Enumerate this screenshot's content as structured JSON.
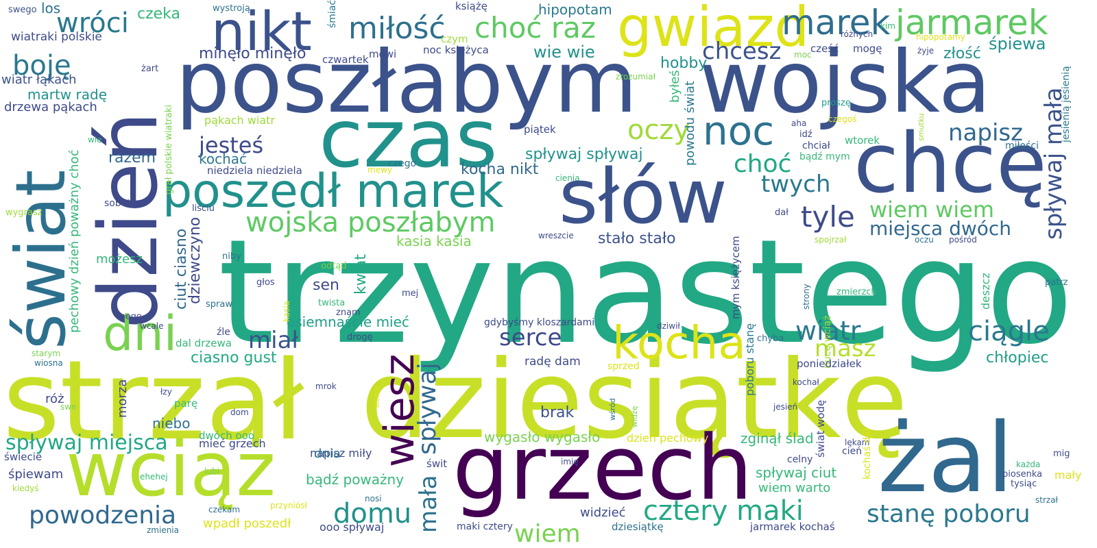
{
  "words": [
    {
      "text": "trzynastego",
      "color": "#22a884"
    },
    {
      "text": "strzał",
      "color": "#c8df27"
    },
    {
      "text": "dziesiątkę",
      "color": "#c8df27"
    },
    {
      "text": "poszłabym",
      "color": "#3b528b"
    },
    {
      "text": "wojska",
      "color": "#3b528b"
    },
    {
      "text": "dzień",
      "color": "#3e4a89"
    },
    {
      "text": "świat",
      "color": "#2d708e"
    },
    {
      "text": "czas",
      "color": "#21918c"
    },
    {
      "text": "chcę",
      "color": "#3b528b"
    },
    {
      "text": "grzech",
      "color": "#440154"
    },
    {
      "text": "żal",
      "color": "#31688e"
    },
    {
      "text": "wciąż",
      "color": "#b5de2b"
    },
    {
      "text": "słów",
      "color": "#3b528b"
    },
    {
      "text": "gwiazd",
      "color": "#dde318"
    },
    {
      "text": "nikt",
      "color": "#3b528b"
    },
    {
      "text": "poszedł marek",
      "color": "#21918c"
    },
    {
      "text": "kocha",
      "color": "#dde318"
    },
    {
      "text": "wiesz",
      "color": "#440154"
    },
    {
      "text": "dni",
      "color": "#7ad151"
    },
    {
      "text": "noc",
      "color": "#2c728e"
    },
    {
      "text": "marek",
      "color": "#2e6e8e"
    },
    {
      "text": "jarmarek",
      "color": "#5ec962"
    },
    {
      "text": "miłość",
      "color": "#2d708e"
    },
    {
      "text": "choć raz",
      "color": "#5ec962"
    },
    {
      "text": "wróci",
      "color": "#2a788e"
    },
    {
      "text": "boję",
      "color": "#2a788e"
    },
    {
      "text": "wojska poszłabym",
      "color": "#5ec962"
    },
    {
      "text": "oczy",
      "color": "#a0da39"
    },
    {
      "text": "chcesz",
      "color": "#3b528b"
    },
    {
      "text": "napisz",
      "color": "#31688e"
    },
    {
      "text": "spływaj mała",
      "color": "#3b528b"
    },
    {
      "text": "choć",
      "color": "#22a884"
    },
    {
      "text": "twych",
      "color": "#2a788e"
    },
    {
      "text": "tyle",
      "color": "#3e4a89"
    },
    {
      "text": "wiem wiem",
      "color": "#5ec962"
    },
    {
      "text": "miejsca dwóch",
      "color": "#31688e"
    },
    {
      "text": "jesteś",
      "color": "#3e4a89"
    },
    {
      "text": "powodzenia",
      "color": "#31688e"
    },
    {
      "text": "domu",
      "color": "#21918c"
    },
    {
      "text": "wiem",
      "color": "#7ad151"
    },
    {
      "text": "cztery maki",
      "color": "#22a884"
    },
    {
      "text": "stanę poboru",
      "color": "#2a788e"
    },
    {
      "text": "ciągle",
      "color": "#2a788e"
    },
    {
      "text": "wiatr",
      "color": "#2a788e"
    },
    {
      "text": "masz",
      "color": "#b5de2b"
    },
    {
      "text": "serce",
      "color": "#3e4a89"
    },
    {
      "text": "miał",
      "color": "#3b528b"
    },
    {
      "text": "spływaj",
      "color": "#31688e"
    },
    {
      "text": "mała",
      "color": "#2d708e"
    },
    {
      "text": "spływaj miejsca",
      "color": "#22a884"
    },
    {
      "text": "chłopiec",
      "color": "#1f9e89"
    },
    {
      "text": "hipopotam",
      "color": "#29798e"
    },
    {
      "text": "wie wie",
      "color": "#21918c"
    },
    {
      "text": "hobby",
      "color": "#21918c"
    },
    {
      "text": "śpiewa",
      "color": "#21918c"
    },
    {
      "text": "złość",
      "color": "#21918c"
    },
    {
      "text": "minęło minęło",
      "color": "#3e4a89"
    },
    {
      "text": "spływaj spływaj",
      "color": "#21918c"
    },
    {
      "text": "kocha nikt",
      "color": "#31688e"
    },
    {
      "text": "razem",
      "color": "#31688e"
    },
    {
      "text": "kochać",
      "color": "#2a788e"
    },
    {
      "text": "stało stało",
      "color": "#3b528b"
    },
    {
      "text": "kasia kasia",
      "color": "#7ad151"
    },
    {
      "text": "ciut ciasno",
      "color": "#31688e"
    },
    {
      "text": "dziewczyno",
      "color": "#3e4a89"
    },
    {
      "text": "kwiat",
      "color": "#22a884"
    },
    {
      "text": "sen",
      "color": "#3e4a89"
    },
    {
      "text": "osiemnaście mieć",
      "color": "#1f9e89"
    },
    {
      "text": "ciasno gust",
      "color": "#22a884"
    },
    {
      "text": "martw radę",
      "color": "#21918c"
    },
    {
      "text": "drzewa pąkach",
      "color": "#3e4a89"
    },
    {
      "text": "wiatr łąkach",
      "color": "#3b528b"
    },
    {
      "text": "wiatraki polskie",
      "color": "#3e4a89"
    },
    {
      "text": "czeka",
      "color": "#35b779"
    },
    {
      "text": "los",
      "color": "#2d708e"
    },
    {
      "text": "swego",
      "color": "#3b528b"
    },
    {
      "text": "wystroją",
      "color": "#2d708e"
    },
    {
      "text": "śmiać",
      "color": "#2a788e"
    },
    {
      "text": "książę",
      "color": "#3e4a89"
    },
    {
      "text": "czym",
      "color": "#a0da39"
    },
    {
      "text": "mówi",
      "color": "#3e4a89"
    },
    {
      "text": "noc księżyca",
      "color": "#3e4a89"
    },
    {
      "text": "czwartek",
      "color": "#3e4a89"
    },
    {
      "text": "żart",
      "color": "#3e4a89"
    },
    {
      "text": "pąkach wiatr",
      "color": "#a0da39"
    },
    {
      "text": "piątek",
      "color": "#3e4a89"
    },
    {
      "text": "byłeś",
      "color": "#35b779"
    },
    {
      "text": "powodu świat",
      "color": "#2a788e"
    },
    {
      "text": "zrozumiał",
      "color": "#7ad151"
    },
    {
      "text": "moc",
      "color": "#7ad151"
    },
    {
      "text": "cześć",
      "color": "#3e4a89"
    },
    {
      "text": "mogę",
      "color": "#3e4a89"
    },
    {
      "text": "kim",
      "color": "#35b779"
    },
    {
      "text": "różnych",
      "color": "#3e4a89"
    },
    {
      "text": "hipopotamy",
      "color": "#dde318"
    },
    {
      "text": "żyje",
      "color": "#3e4a89"
    },
    {
      "text": "proszę",
      "color": "#1f9e89"
    },
    {
      "text": "aha",
      "color": "#3e4a89"
    },
    {
      "text": "czegoś",
      "color": "#dde318"
    },
    {
      "text": "idź",
      "color": "#3e4a89"
    },
    {
      "text": "chciał",
      "color": "#3e4a89"
    },
    {
      "text": "wtorek",
      "color": "#35b779"
    },
    {
      "text": "bądź mym",
      "color": "#35b779"
    },
    {
      "text": "smutku",
      "color": "#a0da39"
    },
    {
      "text": "miłości",
      "color": "#2d708e"
    },
    {
      "text": "jesienią jesienią",
      "color": "#2a788e"
    },
    {
      "text": "wie",
      "color": "#35b779"
    },
    {
      "text": "grał polskie wiatraki",
      "color": "#7ad151"
    },
    {
      "text": "pechowy dzień poważny choć",
      "color": "#35b779"
    },
    {
      "text": "niedziela niedziela",
      "color": "#3e4a89"
    },
    {
      "text": "czego",
      "color": "#2d708e"
    },
    {
      "text": "mewy",
      "color": "#dde318"
    },
    {
      "text": "cienia",
      "color": "#35b779"
    },
    {
      "text": "wygrasz",
      "color": "#a0da39"
    },
    {
      "text": "sobotę",
      "color": "#3e4a89"
    },
    {
      "text": "liściu",
      "color": "#3e4a89"
    },
    {
      "text": "dał",
      "color": "#3e4a89"
    },
    {
      "text": "wreszcie",
      "color": "#3e4a89"
    },
    {
      "text": "spojrzał",
      "color": "#a0da39"
    },
    {
      "text": "oczu",
      "color": "#2d708e"
    },
    {
      "text": "pośród",
      "color": "#3e4a89"
    },
    {
      "text": "patrz",
      "color": "#2d708e"
    },
    {
      "text": "możesz",
      "color": "#35b779"
    },
    {
      "text": "niby",
      "color": "#2d708e"
    },
    {
      "text": "odtąd",
      "color": "#7ad151"
    },
    {
      "text": "mym księżycem",
      "color": "#3e4a89"
    },
    {
      "text": "głos",
      "color": "#3e4a89"
    },
    {
      "text": "spraw",
      "color": "#2d708e"
    },
    {
      "text": "kasia",
      "color": "#dde318"
    },
    {
      "text": "twista",
      "color": "#35b779"
    },
    {
      "text": "znam",
      "color": "#3e4a89"
    },
    {
      "text": "mej",
      "color": "#3e4a89"
    },
    {
      "text": "strony",
      "color": "#2d708e"
    },
    {
      "text": "zmierzch",
      "color": "#35b779"
    },
    {
      "text": "deszcz",
      "color": "#35b779"
    },
    {
      "text": "mego",
      "color": "#3e4a89"
    },
    {
      "text": "wcale",
      "color": "#3e4a89"
    },
    {
      "text": "gdybyśmy kloszardami",
      "color": "#3e4a89"
    },
    {
      "text": "dziwił",
      "color": "#3e4a89"
    },
    {
      "text": "poboru stanę",
      "color": "#2a788e"
    },
    {
      "text": "nucę wciąż",
      "color": "#a0da39"
    },
    {
      "text": "dal drzewa",
      "color": "#35b779"
    },
    {
      "text": "źle",
      "color": "#3e4a89"
    },
    {
      "text": "drogę",
      "color": "#3e4a89"
    },
    {
      "text": "chyba",
      "color": "#2d708e"
    },
    {
      "text": "radę dam",
      "color": "#3e4a89"
    },
    {
      "text": "poniedziałek",
      "color": "#3e4a89"
    },
    {
      "text": "starym",
      "color": "#7ad151"
    },
    {
      "text": "wiosna",
      "color": "#2d708e"
    },
    {
      "text": "sprzed",
      "color": "#dde318"
    },
    {
      "text": "morza",
      "color": "#3e4a89"
    },
    {
      "text": "róż",
      "color": "#3e4a89"
    },
    {
      "text": "łzy",
      "color": "#3e4a89"
    },
    {
      "text": "parę",
      "color": "#35b779"
    },
    {
      "text": "swe",
      "color": "#7ad151"
    },
    {
      "text": "mrok",
      "color": "#3e4a89"
    },
    {
      "text": "słowa",
      "color": "#dde318"
    },
    {
      "text": "brak",
      "color": "#3b528b"
    },
    {
      "text": "wśród",
      "color": "#2d708e"
    },
    {
      "text": "widzę",
      "color": "#7ad151"
    },
    {
      "text": "kochał",
      "color": "#3e4a89"
    },
    {
      "text": "świat wodę",
      "color": "#3e4a89"
    },
    {
      "text": "jesień",
      "color": "#3e4a89"
    },
    {
      "text": "niebo",
      "color": "#2d708e"
    },
    {
      "text": "dom",
      "color": "#3e4a89"
    },
    {
      "text": "dwóch ooo",
      "color": "#35b779"
    },
    {
      "text": "wygasło wygasło",
      "color": "#7ad151"
    },
    {
      "text": "mieć grzech",
      "color": "#3e4a89"
    },
    {
      "text": "dzień pechowy",
      "color": "#dde318"
    },
    {
      "text": "zginął ślad",
      "color": "#35b779"
    },
    {
      "text": "lękam",
      "color": "#3e4a89"
    },
    {
      "text": "cień",
      "color": "#3e4a89"
    },
    {
      "text": "kochaś dal",
      "color": "#dde318"
    },
    {
      "text": "napisz miły",
      "color": "#3e4a89"
    },
    {
      "text": "dnia",
      "color": "#2d708e"
    },
    {
      "text": "świt",
      "color": "#3e4a89"
    },
    {
      "text": "imię",
      "color": "#3e4a89"
    },
    {
      "text": "celny",
      "color": "#3e4a89"
    },
    {
      "text": "mig",
      "color": "#3e4a89"
    },
    {
      "text": "piosenka",
      "color": "#3e4a89"
    },
    {
      "text": "każda",
      "color": "#35b779"
    },
    {
      "text": "tysiąc",
      "color": "#3e4a89"
    },
    {
      "text": "mały",
      "color": "#dde318"
    },
    {
      "text": "świecie",
      "color": "#3e4a89"
    },
    {
      "text": "śpiewam",
      "color": "#3e4a89"
    },
    {
      "text": "ehehej",
      "color": "#35b779"
    },
    {
      "text": "lubi",
      "color": "#7ad151"
    },
    {
      "text": "kiedyś",
      "color": "#a0da39"
    },
    {
      "text": "bądź poważny",
      "color": "#35b779"
    },
    {
      "text": "spływaj ciut",
      "color": "#35b779"
    },
    {
      "text": "wiem warto",
      "color": "#35b779"
    },
    {
      "text": "nosi",
      "color": "#2d708e"
    },
    {
      "text": "przyniósł",
      "color": "#dde318"
    },
    {
      "text": "czekam",
      "color": "#2d708e"
    },
    {
      "text": "widzieć",
      "color": "#3e4a89"
    },
    {
      "text": "strzał",
      "color": "#2d708e"
    },
    {
      "text": "wpadł poszedł",
      "color": "#dde318"
    },
    {
      "text": "ooo spływaj",
      "color": "#3e4a89"
    },
    {
      "text": "maki cztery",
      "color": "#3e4a89"
    },
    {
      "text": "dziesiątkę",
      "color": "#2d708e"
    },
    {
      "text": "jarmarek kochaś",
      "color": "#3e4a89"
    },
    {
      "text": "zmienia",
      "color": "#2d708e"
    }
  ]
}
